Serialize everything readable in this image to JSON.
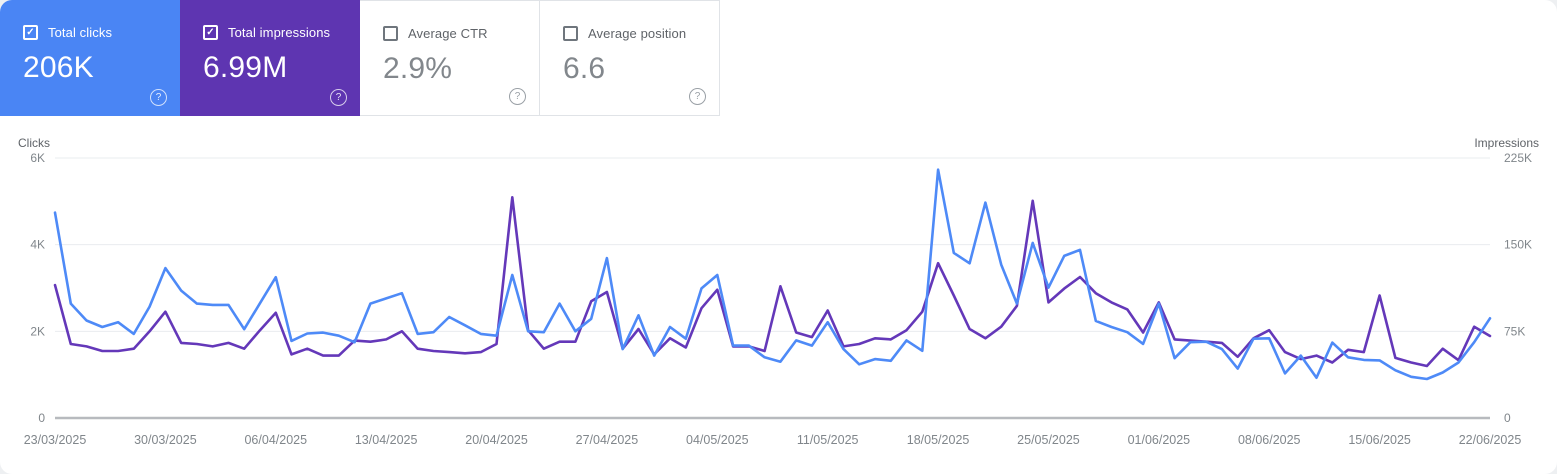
{
  "cards": [
    {
      "id": "total-clicks",
      "label": "Total clicks",
      "value": "206K",
      "selected": true,
      "bg": "#4a85f4"
    },
    {
      "id": "total-impressions",
      "label": "Total impressions",
      "value": "6.99M",
      "selected": true,
      "bg": "#5e35b1"
    },
    {
      "id": "average-ctr",
      "label": "Average CTR",
      "value": "2.9%",
      "selected": false,
      "bg": "#ffffff"
    },
    {
      "id": "average-position",
      "label": "Average position",
      "value": "6.6",
      "selected": false,
      "bg": "#ffffff"
    }
  ],
  "icons": {
    "checkbox_check_glyph": "✓",
    "help_glyph": "?"
  },
  "colors": {
    "clicks_accent": "#4a85f4",
    "impressions_accent": "#5e35b1",
    "clicks_line": "#4e8af7",
    "impressions_line": "#6438b9",
    "grid": "#eaecef",
    "axis_line": "#b7babe",
    "tick_text": "#80868b",
    "axis_title_text": "#5f6368",
    "date_text": "#80868b"
  },
  "chart_data": {
    "type": "line",
    "grid": "horizontal",
    "legend": "none",
    "x_tick_labels": [
      "23/03/2025",
      "30/03/2025",
      "06/04/2025",
      "13/04/2025",
      "20/04/2025",
      "27/04/2025",
      "04/05/2025",
      "11/05/2025",
      "18/05/2025",
      "25/05/2025",
      "01/06/2025",
      "08/06/2025",
      "15/06/2025",
      "22/06/2025"
    ],
    "points_per_tick": 7,
    "left_axis": {
      "label": "Clicks",
      "ticks": [
        "6K",
        "4K",
        "2K",
        "0"
      ],
      "min": 0,
      "max": 6000
    },
    "right_axis": {
      "label": "Impressions",
      "ticks": [
        "225K",
        "150K",
        "75K",
        "0"
      ],
      "min": 0,
      "max": 225000
    },
    "series": [
      {
        "name": "Clicks",
        "axis": "left",
        "color": "#4e8af7",
        "values": [
          4740,
          2640,
          2250,
          2100,
          2210,
          1940,
          2570,
          3460,
          2940,
          2640,
          2610,
          2610,
          2050,
          2650,
          3250,
          1780,
          1950,
          1970,
          1900,
          1750,
          2640,
          2760,
          2880,
          1940,
          1980,
          2330,
          2140,
          1940,
          1900,
          3300,
          2000,
          1980,
          2640,
          2000,
          2290,
          3690,
          1590,
          2370,
          1440,
          2100,
          1830,
          2990,
          3300,
          1670,
          1670,
          1400,
          1300,
          1790,
          1670,
          2210,
          1590,
          1240,
          1360,
          1320,
          1790,
          1550,
          5730,
          3810,
          3570,
          4970,
          3540,
          2640,
          4040,
          3010,
          3740,
          3880,
          2240,
          2100,
          1980,
          1710,
          2640,
          1380,
          1750,
          1760,
          1590,
          1140,
          1830,
          1840,
          1030,
          1440,
          930,
          1740,
          1400,
          1340,
          1330,
          1100,
          950,
          900,
          1050,
          1280,
          1750,
          2300
        ]
      },
      {
        "name": "Impressions",
        "axis": "right",
        "color": "#6438b9",
        "values": [
          115000,
          64000,
          62000,
          58000,
          58000,
          60000,
          75000,
          92000,
          65000,
          64000,
          62000,
          65000,
          60000,
          76000,
          91000,
          55000,
          60000,
          54000,
          54000,
          67000,
          66000,
          68000,
          75000,
          60000,
          58000,
          57000,
          56000,
          57000,
          64000,
          191000,
          76000,
          60000,
          66000,
          66000,
          101000,
          109000,
          60000,
          77000,
          55000,
          69000,
          61000,
          95000,
          111000,
          62000,
          62000,
          58000,
          114000,
          74000,
          70000,
          93000,
          62000,
          64000,
          69000,
          68000,
          76000,
          92000,
          134000,
          106000,
          77000,
          69000,
          79000,
          97000,
          188000,
          100000,
          112000,
          122000,
          108000,
          100000,
          94000,
          74000,
          100000,
          68000,
          67000,
          66000,
          65000,
          53000,
          69000,
          76000,
          57000,
          51000,
          54000,
          48000,
          59000,
          57000,
          106000,
          52000,
          48000,
          45000,
          60000,
          50000,
          79000,
          71000
        ]
      }
    ]
  }
}
